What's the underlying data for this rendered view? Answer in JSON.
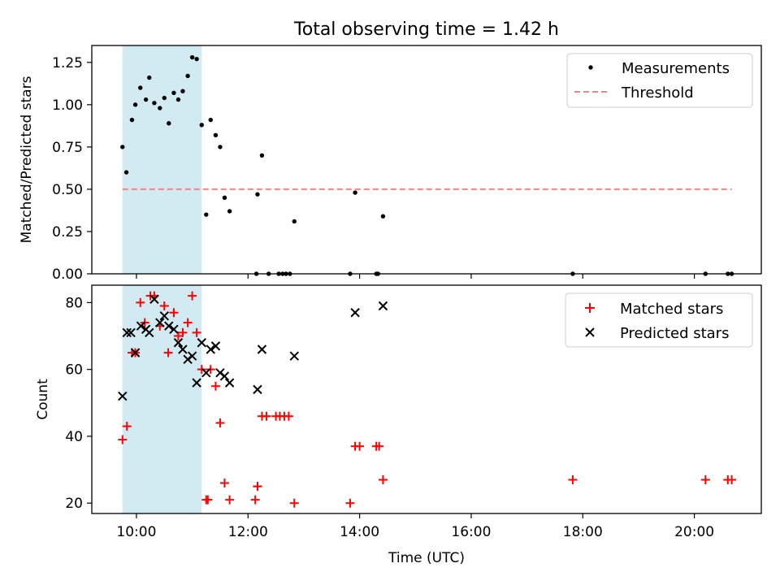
{
  "figure": {
    "title": "Total observing time = 1.42 h"
  },
  "chart_data": [
    {
      "type": "scatter",
      "panel": "top",
      "ylabel": "Matched/Predicted stars",
      "xlabel": "",
      "x_ticks": [
        "10:00",
        "12:00",
        "14:00",
        "16:00",
        "18:00",
        "20:00"
      ],
      "y_ticks": [
        "0.00",
        "0.25",
        "0.50",
        "0.75",
        "1.00",
        "1.25"
      ],
      "xlim_hours": [
        9.2,
        21.2
      ],
      "ylim": [
        0,
        1.35
      ],
      "grid": false,
      "legend_position": "top-right",
      "shaded_span_hours": [
        9.75,
        11.17
      ],
      "shade_color": "#add8e6",
      "series": [
        {
          "name": "Measurements",
          "kind": "points",
          "color": "#000000",
          "x": [
            9.75,
            9.82,
            9.92,
            9.98,
            10.07,
            10.17,
            10.23,
            10.32,
            10.42,
            10.5,
            10.58,
            10.67,
            10.75,
            10.83,
            10.92,
            11.0,
            11.08,
            11.17,
            11.25,
            11.33,
            11.42,
            11.5,
            11.58,
            11.67,
            12.17,
            12.25,
            12.83,
            13.92,
            14.42,
            12.15,
            12.37,
            12.55,
            12.62,
            12.68,
            12.75,
            13.83,
            14.3,
            14.33,
            17.82,
            20.2,
            20.6,
            20.67
          ],
          "y": [
            0.75,
            0.6,
            0.91,
            1.0,
            1.1,
            1.03,
            1.16,
            1.01,
            0.98,
            1.04,
            0.89,
            1.07,
            1.03,
            1.08,
            1.17,
            1.28,
            1.27,
            0.88,
            0.35,
            0.91,
            0.82,
            0.75,
            0.45,
            0.37,
            0.47,
            0.7,
            0.31,
            0.48,
            0.34,
            0,
            0,
            0,
            0,
            0,
            0,
            0,
            0,
            0,
            0,
            0,
            0,
            0
          ]
        },
        {
          "name": "Threshold",
          "kind": "dashed-line",
          "color": "#ff7f7f",
          "x": [
            9.75,
            20.67
          ],
          "y": [
            0.5,
            0.5
          ]
        }
      ]
    },
    {
      "type": "scatter",
      "panel": "bottom",
      "ylabel": "Count",
      "xlabel": "Time (UTC)",
      "x_ticks": [
        "10:00",
        "12:00",
        "14:00",
        "16:00",
        "18:00",
        "20:00"
      ],
      "y_ticks": [
        "20",
        "40",
        "60",
        "80"
      ],
      "xlim_hours": [
        9.2,
        21.2
      ],
      "ylim": [
        16.9,
        85.2
      ],
      "grid": false,
      "legend_position": "top-right",
      "shaded_span_hours": [
        9.75,
        11.17
      ],
      "shade_color": "#add8e6",
      "series": [
        {
          "name": "Matched stars",
          "kind": "plus",
          "color": "#ff0000",
          "x": [
            9.75,
            9.83,
            9.92,
            9.98,
            10.07,
            10.15,
            10.25,
            10.32,
            10.42,
            10.5,
            10.57,
            10.67,
            10.75,
            10.83,
            10.92,
            11.0,
            11.08,
            11.17,
            11.25,
            11.33,
            11.42,
            11.5,
            11.58,
            11.67,
            12.17,
            12.25,
            12.33,
            12.5,
            12.57,
            12.65,
            12.73,
            12.83,
            13.83,
            13.92,
            14.0,
            14.3,
            14.35,
            14.42,
            17.82,
            20.2,
            20.6,
            20.67,
            11.28,
            12.13,
            12.17
          ],
          "y": [
            39,
            43,
            65,
            65,
            80,
            74,
            82,
            82,
            73,
            79,
            65,
            77,
            70,
            71,
            74,
            82,
            71,
            60,
            21,
            60,
            55,
            44,
            26,
            21,
            25,
            46,
            46,
            46,
            46,
            46,
            46,
            20,
            20,
            37,
            37,
            37,
            37,
            27,
            27,
            27,
            27,
            27,
            21,
            21,
            25
          ]
        },
        {
          "name": "Predicted stars",
          "kind": "cross",
          "color": "#000000",
          "x": [
            9.75,
            9.83,
            9.9,
            9.98,
            10.08,
            10.17,
            10.23,
            10.32,
            10.42,
            10.5,
            10.58,
            10.67,
            10.75,
            10.83,
            10.92,
            11.0,
            11.08,
            11.17,
            11.25,
            11.33,
            11.42,
            11.5,
            11.58,
            11.67,
            12.17,
            12.25,
            12.83,
            13.92,
            14.42
          ],
          "y": [
            52,
            71,
            71,
            65,
            73,
            72,
            71,
            81,
            74,
            76,
            73,
            72,
            68,
            66,
            63,
            64,
            56,
            68,
            59,
            66,
            67,
            59,
            58,
            56,
            54,
            66,
            64,
            77,
            79
          ]
        }
      ]
    }
  ]
}
